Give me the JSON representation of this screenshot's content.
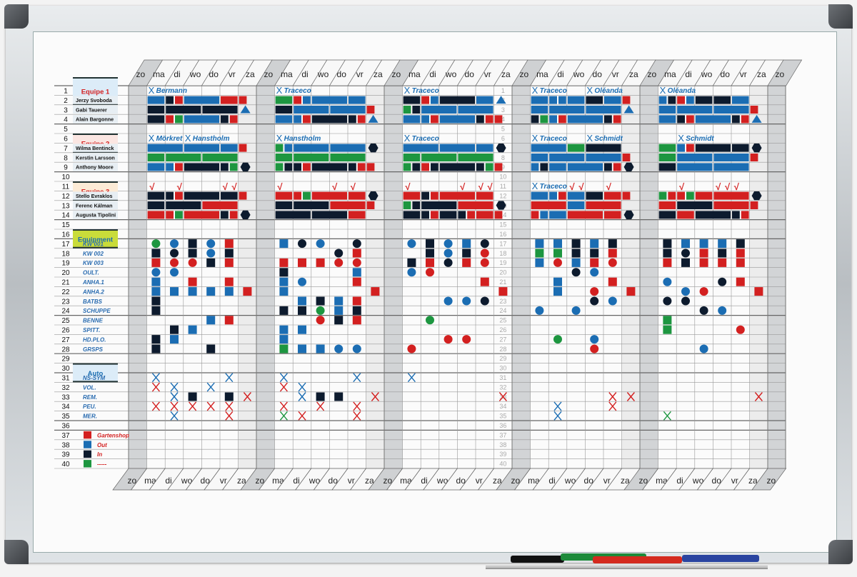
{
  "days": [
    "zo",
    "ma",
    "di",
    "wo",
    "do",
    "vr",
    "za"
  ],
  "row_numbers": [
    1,
    2,
    3,
    4,
    5,
    6,
    7,
    8,
    9,
    10,
    11,
    12,
    13,
    14,
    15,
    16,
    17,
    18,
    19,
    20,
    21,
    22,
    23,
    24,
    25,
    26,
    27,
    28,
    29,
    30,
    31,
    32,
    33,
    34,
    35,
    36,
    37,
    38,
    39,
    40
  ],
  "sections": [
    {
      "label": "Equipe 1",
      "rows": [
        0,
        1
      ],
      "color": "#d42020",
      "bg": "#dcecf8"
    },
    {
      "label": "Equipe 2",
      "rows": [
        5,
        6
      ],
      "color": "#d42020",
      "bg": "#fbe6e2"
    },
    {
      "label": "Equipe 3",
      "rows": [
        10,
        11
      ],
      "color": "#d42020",
      "bg": "#fcebd6"
    },
    {
      "label": "Equipment",
      "rows": [
        15,
        16
      ],
      "color": "#1a6db0",
      "bg": "#c9dc3a"
    },
    {
      "label": "Auto",
      "rows": [
        29,
        30
      ],
      "color": "#1a6db0",
      "bg": "#dcecf8"
    }
  ],
  "people": {
    "2": "Jerzy Svoboda",
    "3": "Gabi Tauerer",
    "4": "Alain Bargonne",
    "7": "Wilma Bentinck",
    "8": "Kerstin Larsson",
    "9": "Anthony Moore",
    "12": "Stello Evraklos",
    "13": "Ferenc Kálman",
    "14": "Augusta Tipolini"
  },
  "equipment_labels": {
    "17": "KW 001",
    "18": "KW 002",
    "19": "KW 003",
    "20": "OULT.",
    "21": "ANHA.1",
    "22": "ANHA.2",
    "23": "BATBS",
    "24": "SCHUPPE",
    "25": "BENNE",
    "26": "SPITT.",
    "27": "HD.PLO.",
    "28": "GRSPS",
    "31": "NS-SYM",
    "32": "VOL.",
    "33": "REM.",
    "34": "PEU.",
    "35": "MER."
  },
  "legend": [
    {
      "row": 37,
      "label": "Gartenshop",
      "color": "#d32020"
    },
    {
      "row": 38,
      "label": "Out",
      "color": "#1b6db3"
    },
    {
      "row": 39,
      "label": "In",
      "color": "#0d1b2e"
    },
    {
      "row": 40,
      "label": "-----",
      "color": "#1d9640"
    }
  ],
  "colors": {
    "B": "#1b6db3",
    "K": "#0d1b2e",
    "R": "#d32020",
    "G": "#1d9640"
  },
  "weeks": [
    {
      "names": [
        {
          "row": 1,
          "col": 1,
          "text": "Bermann"
        },
        {
          "row": 6,
          "col": 1,
          "text": "Mörkret"
        },
        {
          "row": 6,
          "col": 3,
          "text": "Hanstholm"
        }
      ],
      "checks": [
        [
          11,
          1
        ],
        [
          11,
          2.5
        ],
        [
          11,
          5
        ],
        [
          11,
          5.5
        ]
      ],
      "bars": {
        "2": "BBKRbbbbRRr.",
        "3": "KKkkkkKKKKT.",
        "4": "KKRGbbbbKR..",
        "7": "BBBBbbbbBBR.",
        "8": "GGggggGGGG..",
        "9": "BBbRKKKKkGH.",
        "12": "KKkRKKKKkkR.",
        "13": "KKkkkkRRRR..",
        "14": "RRrGRRRRKRH."
      },
      "marks": {
        "17": "cg cb sk cb sr .",
        "18": "sk ck sk cb sk .",
        "19": "sr cr cr sk sr .",
        "20": "cb cb . . . .",
        "21": "sb . sr . sr .",
        "22": "sb sb sb sb sb sr",
        "23": "sk . . . . .",
        "24": "sk . . . . .",
        "25": ". . . sb sr .",
        "26": ". sk sb . . .",
        "27": "sk sb . . . .",
        "28": "sk . . sk . .",
        "31": "xb . . . xb .",
        "32": "xr xb . xb . .",
        "33": ". xb sk . sk xr",
        "34": "xr xr xr xr xr .",
        "35": ". xb . . xr ."
      }
    },
    {
      "names": [
        {
          "row": 1,
          "col": 1,
          "text": "Traceco"
        },
        {
          "row": 6,
          "col": 1,
          "text": "Hanstholm"
        }
      ],
      "checks": [
        [
          11,
          1
        ],
        [
          11,
          4
        ],
        [
          11,
          5
        ]
      ],
      "bars": {
        "2": "GGRBbbbbBB..",
        "3": "KKBBBBbbbbR.",
        "4": "BBbRKKKKkRT.",
        "7": "GBbbbbBBBBH.",
        "8": "GGggggGGGG..",
        "9": "GKkRKKKKkRr.",
        "12": "RRrGRRRRrrH.",
        "13": "KKkkkkRRRRr.",
        "14": "KKKKkkkkRR.."
      },
      "marks": {
        "17": "sb ck cb . ck .",
        "18": ". . . ck sr .",
        "19": "sr sr sr cr cr .",
        "20": "sk . . . sb .",
        "21": "sb cb . . sr .",
        "22": "sb . . . . sr",
        "23": ". sb sk sb sr .",
        "24": "sk sk cg sb sk .",
        "25": ". . cr sk sr .",
        "26": "sb sb . . . .",
        "27": "sb . . . . .",
        "28": "sg sb sb cb cb .",
        "31": "xb . . . xb .",
        "32": "xr xb . . . .",
        "33": ". xb sk sk . xr",
        "34": "xr . xr . xr .",
        "35": "xg xr . . xr ."
      }
    },
    {
      "names": [
        {
          "row": 1,
          "col": 1,
          "text": "Traceco"
        },
        {
          "row": 6,
          "col": 1,
          "text": "Traceco"
        }
      ],
      "checks": [
        [
          11,
          1
        ],
        [
          11,
          4
        ],
        [
          11,
          5
        ],
        [
          11,
          5.5
        ]
      ],
      "bars": {
        "2": "KKRBKKKKBBT.",
        "3": "GKBBBBbbbb..",
        "4": "BBbRBBBBKRr.",
        "7": "BBBBbbbbBBH.",
        "8": "GGggggGGGG..",
        "9": "GKRKkkkkKGr.",
        "12": "RRKRrrrrRR..",
        "13": "GKkkkkRRRRH.",
        "14": "KKkRKKkRrrR."
      },
      "marks": {
        "17": "cb sk cb sb ck .",
        "18": ". sk cb sk cr .",
        "19": "sk sr ck sr cr .",
        "20": "cb cr . . . .",
        "21": ". . . . sr .",
        "22": ". . . . . sr",
        "23": ". . cb cb ck .",
        "25": ". cg . . . .",
        "27": ". . cr cr . .",
        "28": "cr . . . . .",
        "31": "xb . . . . .",
        "33": ". . . . . xr"
      }
    },
    {
      "names": [
        {
          "row": 1,
          "col": 1,
          "text": "Traceco"
        },
        {
          "row": 1,
          "col": 4,
          "text": "Oléanda"
        },
        {
          "row": 6,
          "col": 1,
          "text": "Traceco"
        },
        {
          "row": 6,
          "col": 4,
          "text": "Schmidt"
        },
        {
          "row": 11,
          "col": 1,
          "text": "Traceco"
        }
      ],
      "checks": [
        [
          11,
          3
        ],
        [
          11,
          3.5
        ],
        [
          11,
          5
        ]
      ],
      "bars": {
        "2": "BBbBbbKKBBR.",
        "3": "BBbbbbBBBBT.",
        "4": "KGBRbbbbKR..",
        "7": "BBBBGGKKKK..",
        "8": "BBbbbbBBBBR.",
        "9": "BKbbBBBBKRH.",
        "12": "BBbRBBKKrrR.",
        "13": "RRRRBBrrrr..",
        "14": "RBbbrrrrRRH."
      },
      "marks": {
        "17": "sb sb sk sb sk .",
        "18": "sg sg sk sk sr .",
        "19": "sb cr sb sr cr .",
        "20": ". . ck cb . .",
        "21": ". sb . . sr .",
        "22": ". sb . cr . sr",
        "23": ". . . ck cb .",
        "24": "cb . cb . . .",
        "27": ". cg . cb . .",
        "28": ". . . cr . .",
        "33": ". . . . xr xr",
        "34": ". xb . . xr .",
        "35": ". xb . . . ."
      }
    },
    {
      "names": [
        {
          "row": 1,
          "col": 1,
          "text": "Oléanda"
        },
        {
          "row": 6,
          "col": 2,
          "text": "Schmidt"
        }
      ],
      "checks": [
        [
          11,
          2
        ],
        [
          11,
          4
        ],
        [
          11,
          4.5
        ],
        [
          11,
          5
        ]
      ],
      "bars": {
        "2": "BKRBKKkkBB..",
        "3": "BBbbbbBBBBR.",
        "4": "BBKRbbbbKRT.",
        "7": "GGBRKKKKkkH.",
        "8": "GGbbbbBBBBR.",
        "9": "KKbbbbBBBB..",
        "12": "GRrGRRrrrrH.",
        "13": "RRKKKKRRRRr.",
        "14": "KKRRkkkkKR.."
      },
      "marks": {
        "17": "sk sb sb sb sk .",
        "18": "sk ck sr sk sr .",
        "19": "sr sk sr sr sr .",
        "21": "cb . . ck sr .",
        "22": ". cb cr . . sr",
        "23": "ck ck . . . .",
        "24": ". . ck cb . .",
        "25": "sg . . . . .",
        "26": "sg . . . cr .",
        "28": ". . cb . . .",
        "33": ". . . . . xr",
        "35": "xg . . . . ."
      }
    }
  ]
}
